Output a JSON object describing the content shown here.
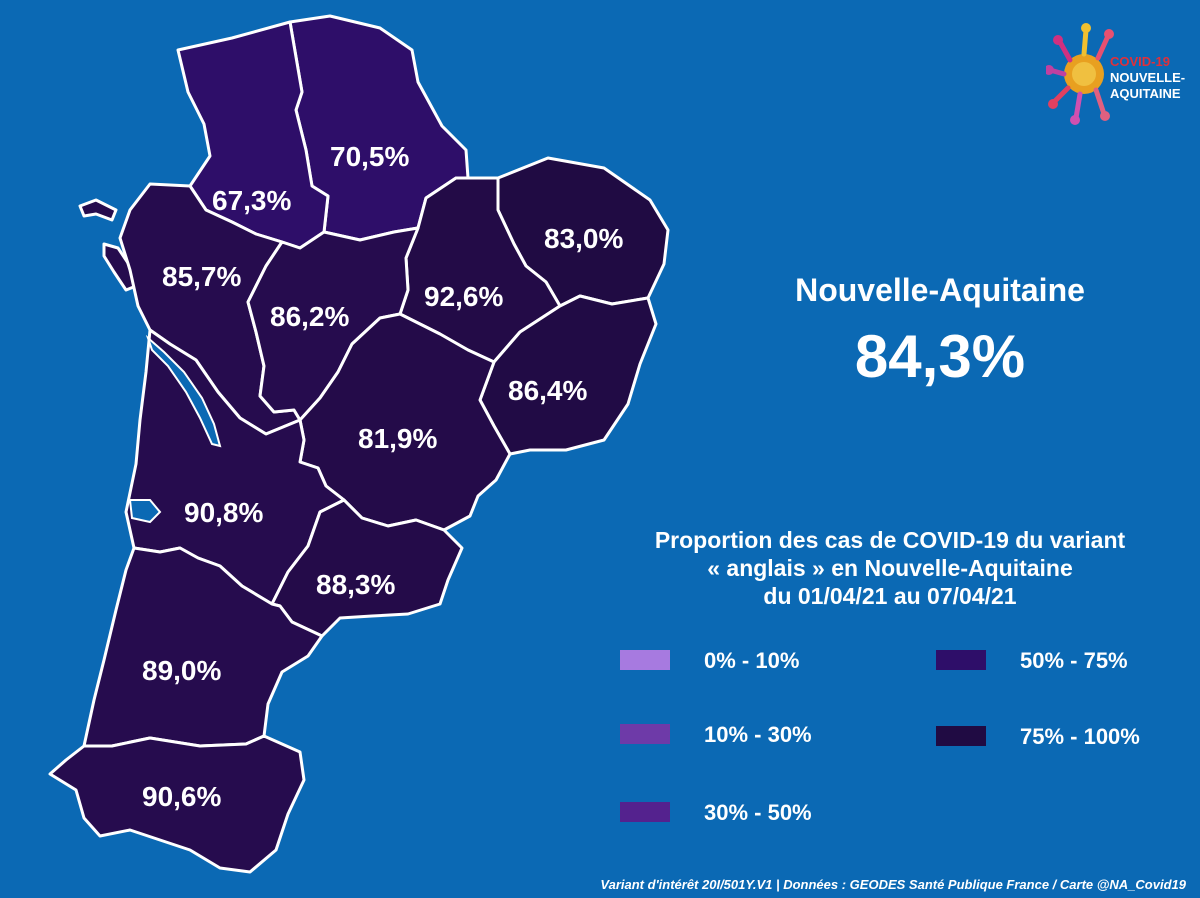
{
  "departments": [
    {
      "id": "vienne",
      "value": "70,5%",
      "color": "#2e0e69"
    },
    {
      "id": "deux-sevres",
      "value": "67,3%",
      "color": "#2e0e69"
    },
    {
      "id": "creuse",
      "value": "83,0%",
      "color": "#200b43"
    },
    {
      "id": "charente-maritime",
      "value": "85,7%",
      "color": "#260c4e"
    },
    {
      "id": "haute-vienne",
      "value": "92,6%",
      "color": "#230b47"
    },
    {
      "id": "charente",
      "value": "86,2%",
      "color": "#260c4e"
    },
    {
      "id": "correze",
      "value": "86,4%",
      "color": "#210b45"
    },
    {
      "id": "dordogne",
      "value": "81,9%",
      "color": "#240b49"
    },
    {
      "id": "gironde",
      "value": "90,8%",
      "color": "#260c4e"
    },
    {
      "id": "lot-et-garonne",
      "value": "88,3%",
      "color": "#240b49"
    },
    {
      "id": "landes",
      "value": "89,0%",
      "color": "#260c4e"
    },
    {
      "id": "pyrenees-atlantiques",
      "value": "90,6%",
      "color": "#260c4e"
    }
  ],
  "region": {
    "name": "Nouvelle-Aquitaine",
    "value": "84,3%"
  },
  "caption": {
    "line1": "Proportion des cas de COVID-19 du variant",
    "line2": "« anglais » en Nouvelle-Aquitaine",
    "line3": "du 01/04/21 au 07/04/21"
  },
  "legend": [
    {
      "label": "0% - 10%",
      "color": "#a77ae0"
    },
    {
      "label": "10% - 30%",
      "color": "#6e3aa8"
    },
    {
      "label": "30% - 50%",
      "color": "#54228e"
    },
    {
      "label": "50% - 75%",
      "color": "#2e0e69"
    },
    {
      "label": "75% - 100%",
      "color": "#200b43"
    }
  ],
  "footer": "Variant d'intérêt 20I/501Y.V1 | Données : GEODES Santé Publique France / Carte @NA_Covid19",
  "logo": {
    "line1": "COVID-19",
    "line2": "NOUVELLE-",
    "line3": "AQUITAINE"
  }
}
